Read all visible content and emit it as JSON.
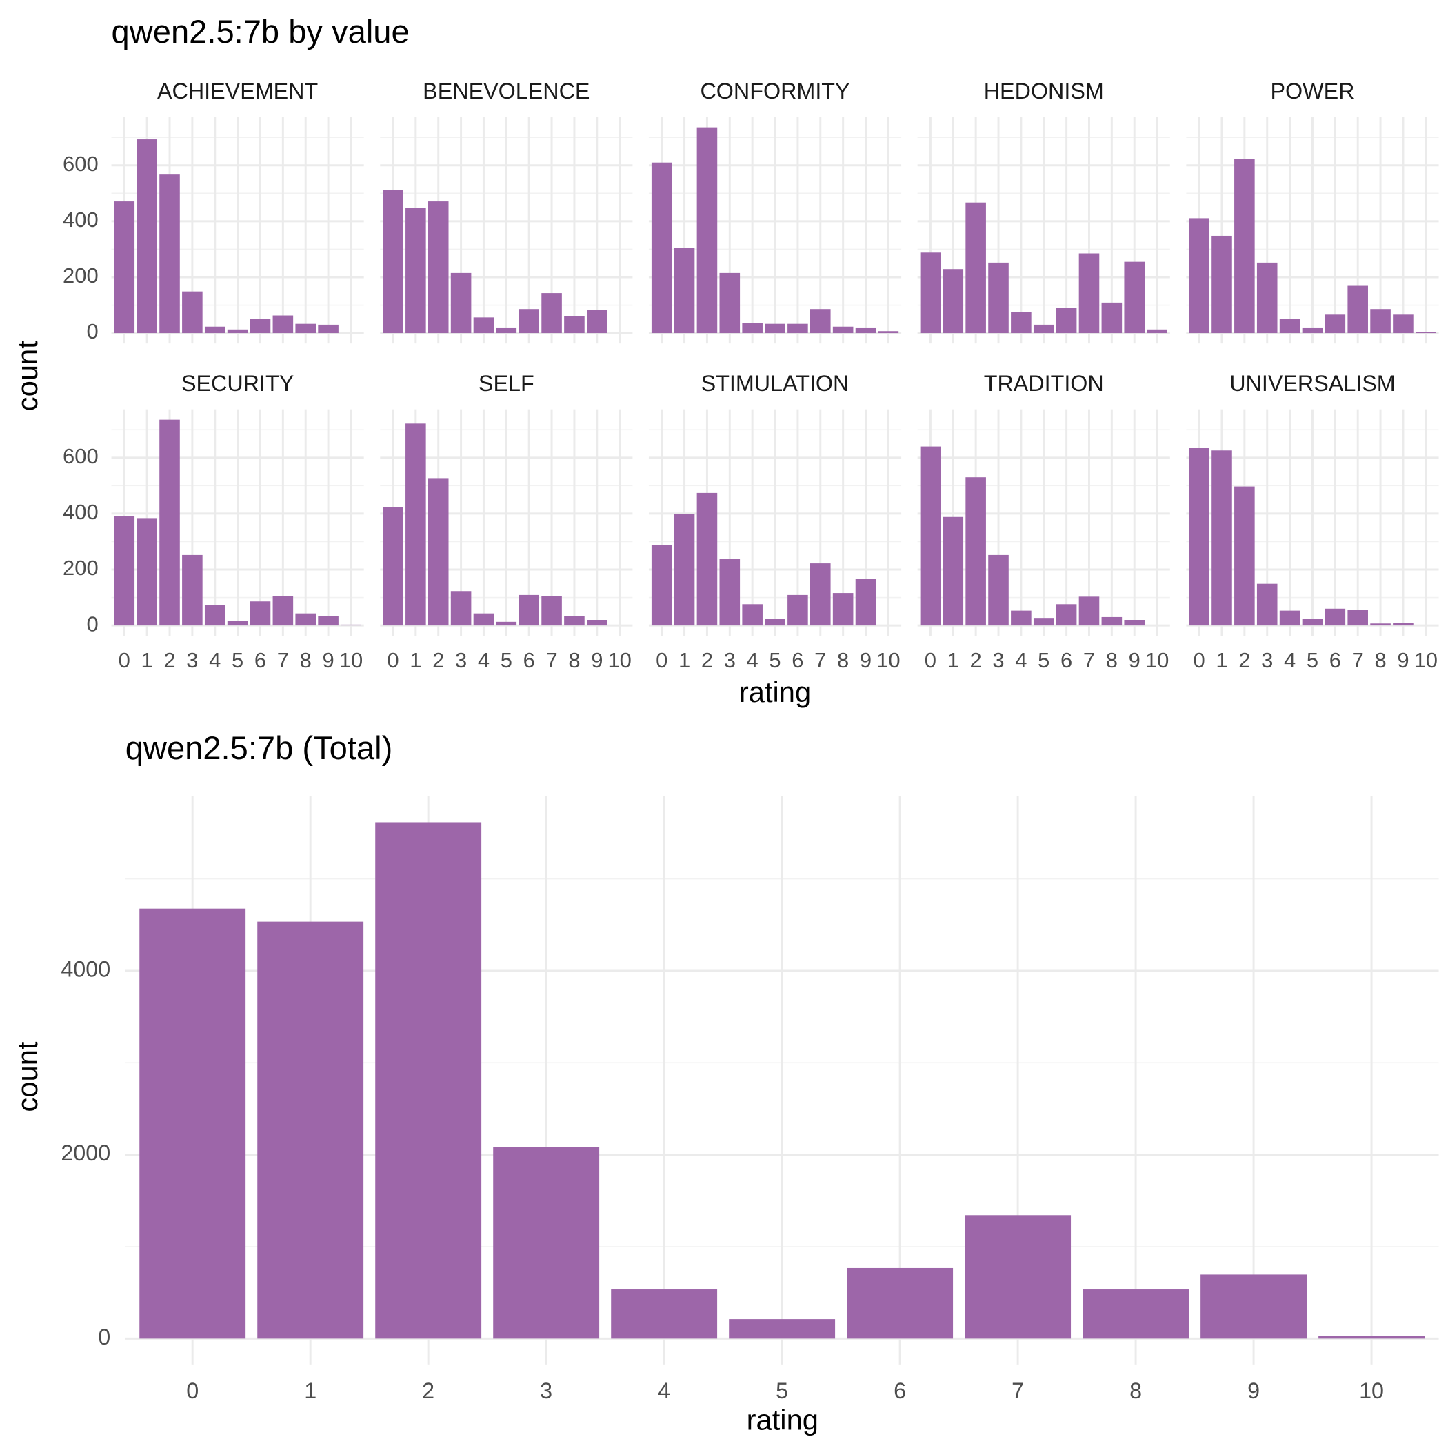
{
  "chart_data": [
    {
      "type": "facet-bar",
      "title": "qwen2.5:7b by value",
      "xlabel": "rating",
      "ylabel": "count",
      "color": "#9b63a7",
      "grid": true,
      "categories": [
        0,
        1,
        2,
        3,
        4,
        5,
        6,
        7,
        8,
        9,
        10
      ],
      "ylim": [
        -37,
        773
      ],
      "yticks": [
        0,
        200,
        400,
        600
      ],
      "minor_yticks": [
        100,
        300,
        500,
        700
      ],
      "panels": [
        {
          "name": "ACHIEVEMENT",
          "values": [
            471,
            693,
            567,
            149,
            23,
            13,
            50,
            63,
            33,
            30,
            0
          ]
        },
        {
          "name": "BENEVOLENCE",
          "values": [
            513,
            447,
            471,
            215,
            56,
            20,
            86,
            143,
            60,
            83,
            0
          ]
        },
        {
          "name": "CONFORMITY",
          "values": [
            610,
            305,
            736,
            215,
            36,
            33,
            33,
            86,
            23,
            20,
            7
          ]
        },
        {
          "name": "HEDONISM",
          "values": [
            288,
            229,
            467,
            252,
            76,
            30,
            89,
            285,
            109,
            255,
            13
          ]
        },
        {
          "name": "POWER",
          "values": [
            411,
            348,
            623,
            252,
            50,
            20,
            66,
            169,
            86,
            66,
            3
          ]
        },
        {
          "name": "SECURITY",
          "values": [
            391,
            384,
            736,
            252,
            73,
            17,
            86,
            106,
            43,
            33,
            3
          ]
        },
        {
          "name": "SELF",
          "values": [
            424,
            722,
            527,
            123,
            43,
            13,
            109,
            106,
            33,
            20,
            0
          ]
        },
        {
          "name": "STIMULATION",
          "values": [
            288,
            398,
            474,
            239,
            76,
            23,
            109,
            222,
            116,
            166,
            0
          ]
        },
        {
          "name": "TRADITION",
          "values": [
            640,
            388,
            530,
            252,
            53,
            27,
            76,
            103,
            30,
            20,
            0
          ]
        },
        {
          "name": "UNIVERSALISM",
          "values": [
            636,
            626,
            497,
            149,
            53,
            23,
            60,
            56,
            7,
            10,
            0
          ]
        }
      ]
    },
    {
      "type": "bar",
      "title": "qwen2.5:7b (Total)",
      "xlabel": "rating",
      "ylabel": "count",
      "color": "#9b63a7",
      "grid": true,
      "categories": [
        0,
        1,
        2,
        3,
        4,
        5,
        6,
        7,
        8,
        9,
        10
      ],
      "values": [
        4677,
        4535,
        5616,
        2081,
        535,
        212,
        768,
        1343,
        535,
        697,
        30
      ],
      "ylim": [
        -281,
        5897
      ],
      "yticks": [
        0,
        2000,
        4000
      ],
      "minor_yticks": [
        1000,
        3000,
        5000
      ]
    }
  ]
}
